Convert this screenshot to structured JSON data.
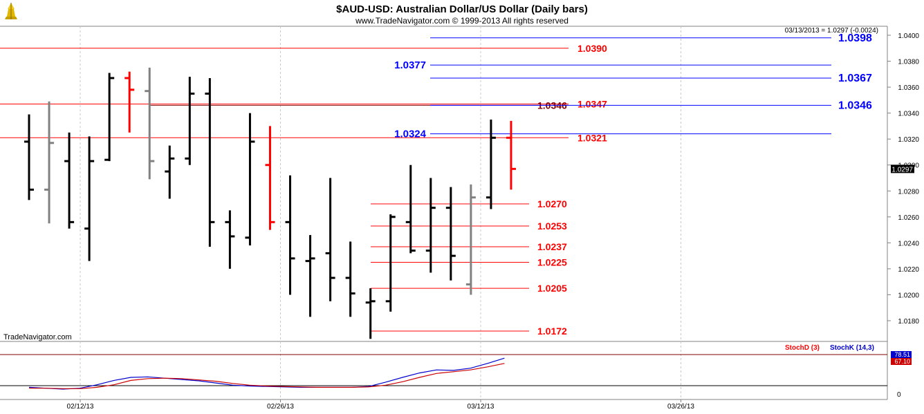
{
  "header": {
    "title": "$AUD-USD:  Australian Dollar/US Dollar  (Daily bars)",
    "subtitle": "www.TradeNavigator.com © 1999-2013 All rights reserved",
    "last_info": "03/13/2013 = 1.0297 (-0.0024)",
    "watermark": "TradeNavigator.com"
  },
  "colors": {
    "up_bar": "#000000",
    "down_bar": "#ff0000",
    "neutral_bar": "#808080",
    "blue_level": "#0000ff",
    "red_level": "#ff0000",
    "dark_level": "#800000"
  },
  "chart_data": [
    {
      "type": "ohlc",
      "x_axis": {
        "ticks": [
          "02/12/13",
          "02/26/13",
          "03/12/13",
          "03/26/13"
        ]
      },
      "y_axis": {
        "ylim": [
          1.0158,
          1.0408
        ],
        "ticks": [
          "1.0400",
          "1.0380",
          "1.0360",
          "1.0340",
          "1.0320",
          "1.0300",
          "1.0280",
          "1.0260",
          "1.0240",
          "1.0220",
          "1.0200",
          "1.0180"
        ],
        "current_price": "1.0297"
      },
      "bars": [
        {
          "o": 1.0318,
          "h": 1.0339,
          "l": 1.0273,
          "c": 1.0281,
          "color": "up"
        },
        {
          "o": 1.0281,
          "h": 1.0349,
          "l": 1.0255,
          "c": 1.0317,
          "color": "neutral"
        },
        {
          "o": 1.0303,
          "h": 1.0325,
          "l": 1.0251,
          "c": 1.0256,
          "color": "up"
        },
        {
          "o": 1.0251,
          "h": 1.0322,
          "l": 1.0226,
          "c": 1.0303,
          "color": "up"
        },
        {
          "o": 1.0304,
          "h": 1.0371,
          "l": 1.0303,
          "c": 1.0367,
          "color": "up"
        },
        {
          "o": 1.0367,
          "h": 1.0372,
          "l": 1.0325,
          "c": 1.0358,
          "color": "down"
        },
        {
          "o": 1.0357,
          "h": 1.0375,
          "l": 1.0289,
          "c": 1.0303,
          "color": "neutral"
        },
        {
          "o": 1.0295,
          "h": 1.0315,
          "l": 1.0274,
          "c": 1.0305,
          "color": "up"
        },
        {
          "o": 1.0305,
          "h": 1.0368,
          "l": 1.03,
          "c": 1.0355,
          "color": "up"
        },
        {
          "o": 1.0355,
          "h": 1.0367,
          "l": 1.0237,
          "c": 1.0256,
          "color": "up"
        },
        {
          "o": 1.0256,
          "h": 1.0265,
          "l": 1.022,
          "c": 1.0245,
          "color": "up"
        },
        {
          "o": 1.0244,
          "h": 1.034,
          "l": 1.0238,
          "c": 1.0318,
          "color": "up"
        },
        {
          "o": 1.03,
          "h": 1.033,
          "l": 1.025,
          "c": 1.0256,
          "color": "down"
        },
        {
          "o": 1.0256,
          "h": 1.0292,
          "l": 1.02,
          "c": 1.0228,
          "color": "up"
        },
        {
          "o": 1.0226,
          "h": 1.0246,
          "l": 1.0183,
          "c": 1.0228,
          "color": "up"
        },
        {
          "o": 1.0232,
          "h": 1.029,
          "l": 1.0195,
          "c": 1.0213,
          "color": "up"
        },
        {
          "o": 1.0213,
          "h": 1.0241,
          "l": 1.0183,
          "c": 1.0201,
          "color": "up"
        },
        {
          "o": 1.0194,
          "h": 1.0205,
          "l": 1.0166,
          "c": 1.0195,
          "color": "up"
        },
        {
          "o": 1.0195,
          "h": 1.0262,
          "l": 1.0187,
          "c": 1.026,
          "color": "up"
        },
        {
          "o": 1.0256,
          "h": 1.03,
          "l": 1.0232,
          "c": 1.0234,
          "color": "up"
        },
        {
          "o": 1.0234,
          "h": 1.029,
          "l": 1.0217,
          "c": 1.0267,
          "color": "up"
        },
        {
          "o": 1.0267,
          "h": 1.0283,
          "l": 1.0211,
          "c": 1.023,
          "color": "up"
        },
        {
          "o": 1.0208,
          "h": 1.0285,
          "l": 1.02,
          "c": 1.0275,
          "color": "neutral"
        },
        {
          "o": 1.0275,
          "h": 1.0335,
          "l": 1.0266,
          "c": 1.0321,
          "color": "up"
        },
        {
          "o": 1.0321,
          "h": 1.0334,
          "l": 1.0281,
          "c": 1.0297,
          "color": "down"
        }
      ],
      "levels": [
        {
          "value": 1.0398,
          "label": "1.0398",
          "color": "blue",
          "span": "right",
          "label_side": "right"
        },
        {
          "value": 1.039,
          "label": "1.0390",
          "color": "red",
          "span": "left",
          "label_side": "mid"
        },
        {
          "value": 1.0377,
          "label": "1.0377",
          "color": "blue",
          "span": "mid",
          "label_side": "left"
        },
        {
          "value": 1.0367,
          "label": "1.0367",
          "color": "blue",
          "span": "mid2",
          "label_side": "right"
        },
        {
          "value": 1.0347,
          "label": "1.0347",
          "color": "red",
          "span": "left",
          "label_side": "mid2"
        },
        {
          "value": 1.0346,
          "label": "1.0346",
          "color": "dark",
          "span": "left_dark",
          "label_side": "mid_dark"
        },
        {
          "value": 1.0346,
          "label": "1.0346",
          "color": "blue",
          "span": "mid2",
          "label_side": "right"
        },
        {
          "value": 1.0324,
          "label": "1.0324",
          "color": "blue",
          "span": "mid",
          "label_side": "left"
        },
        {
          "value": 1.0321,
          "label": "1.0321",
          "color": "red",
          "span": "left",
          "label_side": "mid2"
        },
        {
          "value": 1.027,
          "label": "1.0270",
          "color": "red",
          "span": "short",
          "label_side": "short"
        },
        {
          "value": 1.0253,
          "label": "1.0253",
          "color": "red",
          "span": "short",
          "label_side": "short"
        },
        {
          "value": 1.0237,
          "label": "1.0237",
          "color": "red",
          "span": "short",
          "label_side": "short"
        },
        {
          "value": 1.0225,
          "label": "1.0225",
          "color": "red",
          "span": "short",
          "label_side": "short"
        },
        {
          "value": 1.0205,
          "label": "1.0205",
          "color": "red",
          "span": "short",
          "label_side": "short"
        },
        {
          "value": 1.0172,
          "label": "1.0172",
          "color": "red",
          "span": "short",
          "label_side": "short"
        }
      ]
    },
    {
      "type": "line",
      "legend": [
        "StochD (3)",
        "StochK (14,3)"
      ],
      "ylim": [
        0,
        100
      ],
      "y_ticks": [
        "0"
      ],
      "guide_lines": [
        80,
        20
      ],
      "last_values": {
        "stoch_k": "78.51",
        "stoch_d": "67.10"
      },
      "series": [
        {
          "name": "StochK (14,3)",
          "color": "blue",
          "values": [
            12,
            10,
            8,
            10,
            18,
            28,
            35,
            36,
            33,
            30,
            27,
            22,
            17,
            15,
            14,
            13,
            12,
            12,
            12,
            12,
            14,
            24,
            35,
            45,
            52,
            51,
            56,
            67,
            79
          ]
        },
        {
          "name": "StochD (3)",
          "color": "red",
          "values": [
            10,
            10,
            9,
            9,
            12,
            18,
            28,
            32,
            33,
            32,
            29,
            26,
            21,
            17,
            15,
            14,
            13,
            12,
            12,
            12,
            13,
            17,
            25,
            35,
            44,
            48,
            52,
            59,
            67
          ]
        }
      ]
    }
  ]
}
